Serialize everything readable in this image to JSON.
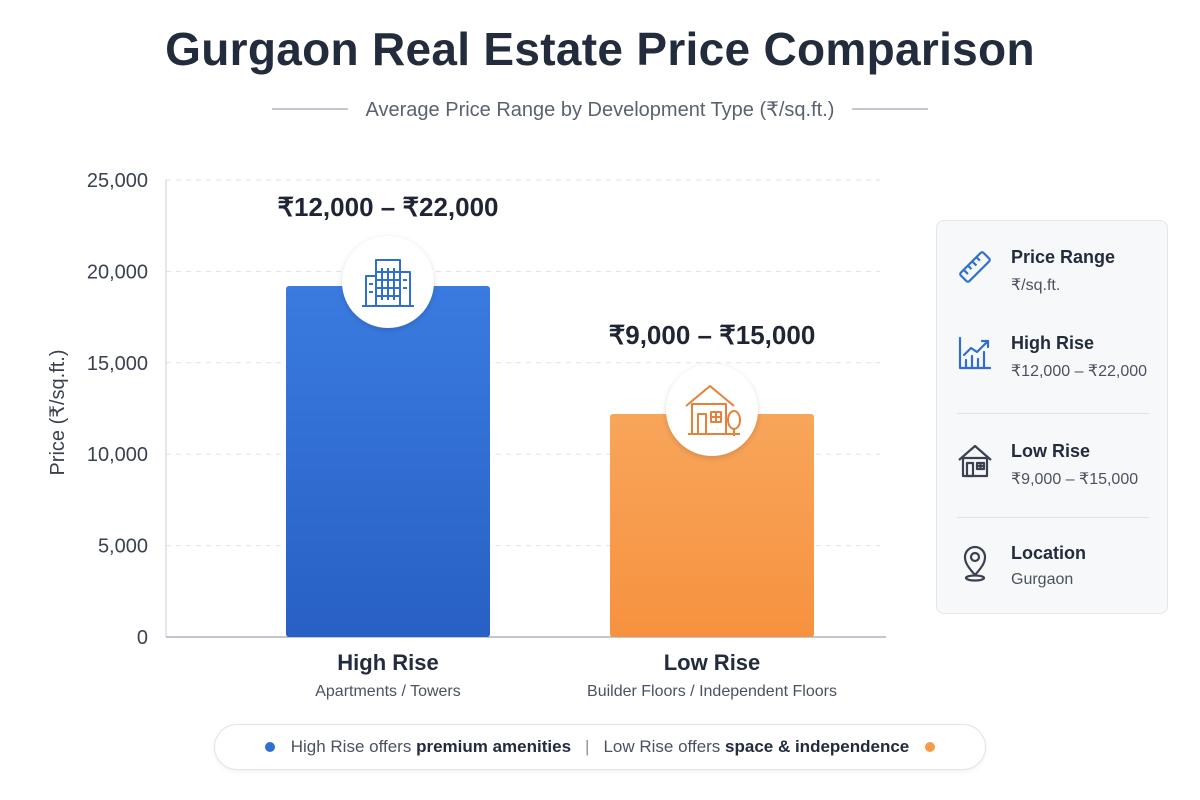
{
  "header": {
    "title": "Gurgaon Real Estate Price Comparison",
    "subtitle": "Average Price Range by Development Type (₹/sq.ft.)"
  },
  "chart_data": {
    "type": "bar",
    "title": "Gurgaon Real Estate Price Comparison",
    "subtitle": "Average Price Range by Development Type (₹/sq.ft.)",
    "ylabel": "Price (₹/sq.ft.)",
    "xlabel": "",
    "ylim": [
      0,
      25000
    ],
    "yticks": [
      0,
      5000,
      10000,
      15000,
      20000,
      25000
    ],
    "ytick_labels": [
      "0",
      "5,000",
      "10,000",
      "15,000",
      "20,000",
      "25,000"
    ],
    "grid": true,
    "categories": [
      "High Rise",
      "Low Rise"
    ],
    "category_sublabels": [
      "Apartments / Towers",
      "Builder Floors / Independent Floors"
    ],
    "values": [
      19200,
      12200
    ],
    "range_labels": [
      "₹12,000 – ₹22,000",
      "₹9,000 – ₹15,000"
    ],
    "colors": [
      "#2f6fd0",
      "#f79a4a"
    ],
    "icons": [
      "building-icon",
      "house-icon"
    ]
  },
  "legend": {
    "items": [
      {
        "icon": "ruler-icon",
        "title": "Price Range",
        "value": "₹/sq.ft."
      },
      {
        "icon": "trend-chart-icon",
        "title": "High Rise",
        "value": "₹12,000 – ₹22,000"
      },
      {
        "icon": "house-icon",
        "title": "Low Rise",
        "value": "₹9,000 – ₹15,000"
      },
      {
        "icon": "location-pin-icon",
        "title": "Location",
        "value": "Gurgaon"
      }
    ]
  },
  "footer": {
    "left_prefix": "High Rise offers ",
    "left_bold": "premium amenities",
    "separator": "|",
    "right_prefix": "Low Rise offers ",
    "right_bold": "space & independence",
    "left_dot_color": "#2f6fd0",
    "right_dot_color": "#f79a4a"
  }
}
